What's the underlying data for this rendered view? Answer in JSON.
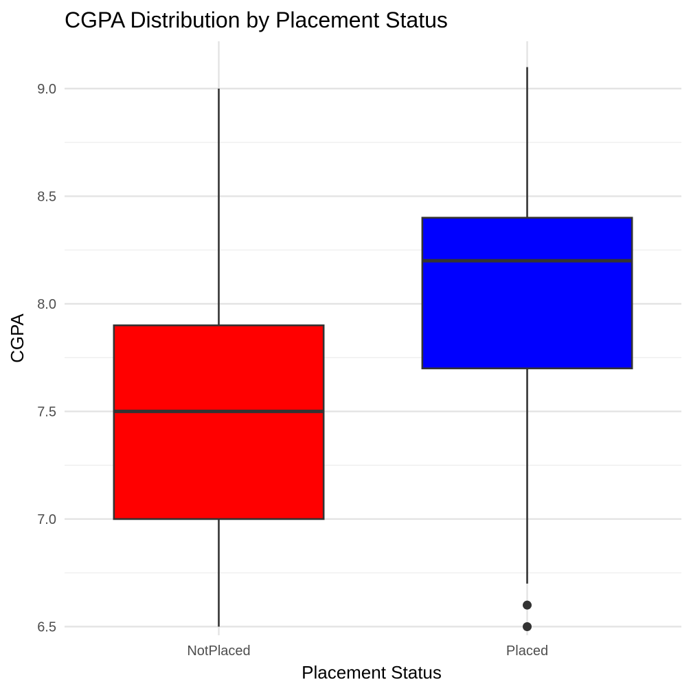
{
  "chart_data": {
    "type": "box",
    "title": "CGPA Distribution by Placement Status",
    "xlabel": "Placement Status",
    "ylabel": "CGPA",
    "categories": [
      "NotPlaced",
      "Placed"
    ],
    "ylim": [
      6.46,
      9.22
    ],
    "yticks": [
      6.5,
      7.0,
      7.5,
      8.0,
      8.5,
      9.0
    ],
    "ytick_labels": [
      "6.5",
      "7.0",
      "7.5",
      "8.0",
      "8.5",
      "9.0"
    ],
    "grid": true,
    "legend": "none",
    "boxes": [
      {
        "category": "NotPlaced",
        "min": 6.5,
        "q1": 7.0,
        "median": 7.5,
        "q3": 7.9,
        "max": 9.0,
        "outliers": [],
        "fill": "#ff0000"
      },
      {
        "category": "Placed",
        "min": 6.7,
        "q1": 7.7,
        "median": 8.2,
        "q3": 8.4,
        "max": 9.1,
        "outliers": [
          6.6,
          6.5
        ],
        "fill": "#0000ff"
      }
    ]
  }
}
